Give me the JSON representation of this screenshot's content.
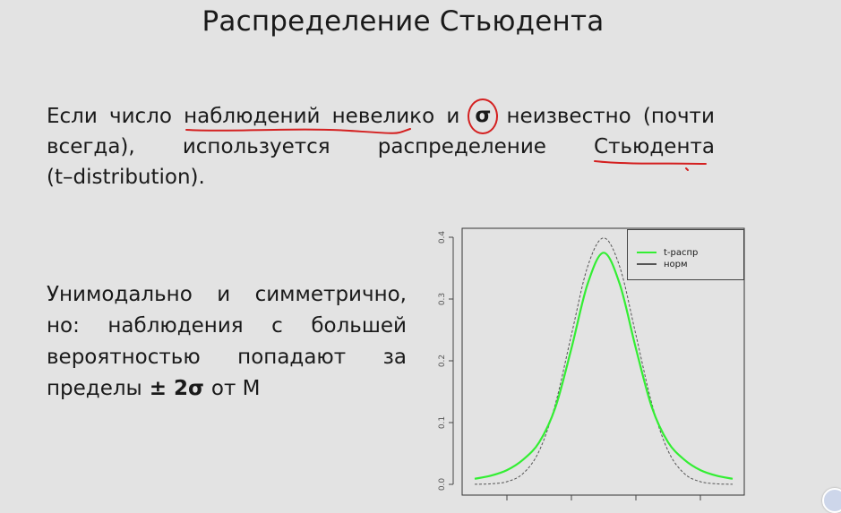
{
  "slide": {
    "title": "Распределение Стьюдента",
    "paragraph1": {
      "line1": [
        "Если",
        "число",
        "наблюдений",
        "невелико",
        "и",
        "σ",
        "неизвестно",
        "(почти"
      ],
      "line2": [
        "всегда),",
        "используется",
        "распределение",
        "Стьюдента"
      ],
      "line3": "(t–distribution)."
    },
    "paragraph2": {
      "line1": [
        "Унимодально",
        "и",
        "симметрично,"
      ],
      "line2": [
        "но:",
        "наблюдения",
        "с",
        "большей"
      ],
      "line3": [
        "вероятностью",
        "попадают",
        "за"
      ],
      "line4_prefix": "пределы",
      "line4_bold": "± 2σ",
      "line4_suffix": "от М"
    }
  },
  "annotations": {
    "ink_color": "#d42020"
  },
  "chart_data": {
    "type": "line",
    "x": [
      -4.0,
      -3.5,
      -3.0,
      -2.5,
      -2.0,
      -1.5,
      -1.0,
      -0.5,
      0.0,
      0.5,
      1.0,
      1.5,
      2.0,
      2.5,
      3.0,
      3.5,
      4.0
    ],
    "series": [
      {
        "name": "t-распр",
        "color": "#33ee33",
        "style": "solid",
        "values": [
          0.009,
          0.014,
          0.023,
          0.04,
          0.068,
          0.124,
          0.22,
          0.324,
          0.375,
          0.324,
          0.22,
          0.124,
          0.068,
          0.04,
          0.023,
          0.014,
          0.009
        ]
      },
      {
        "name": "норм",
        "color": "#555555",
        "style": "dashed",
        "values": [
          0.0001,
          0.0009,
          0.0044,
          0.0175,
          0.054,
          0.1295,
          0.242,
          0.3521,
          0.3989,
          0.3521,
          0.242,
          0.1295,
          0.054,
          0.0175,
          0.0044,
          0.0009,
          0.0001
        ]
      }
    ],
    "yticks": [
      "0.0",
      "0.1",
      "0.2",
      "0.3",
      "0.4"
    ],
    "ylim": [
      0,
      0.4
    ],
    "xlim": [
      -4,
      4
    ],
    "legend_position": "top-right",
    "grid": false
  }
}
